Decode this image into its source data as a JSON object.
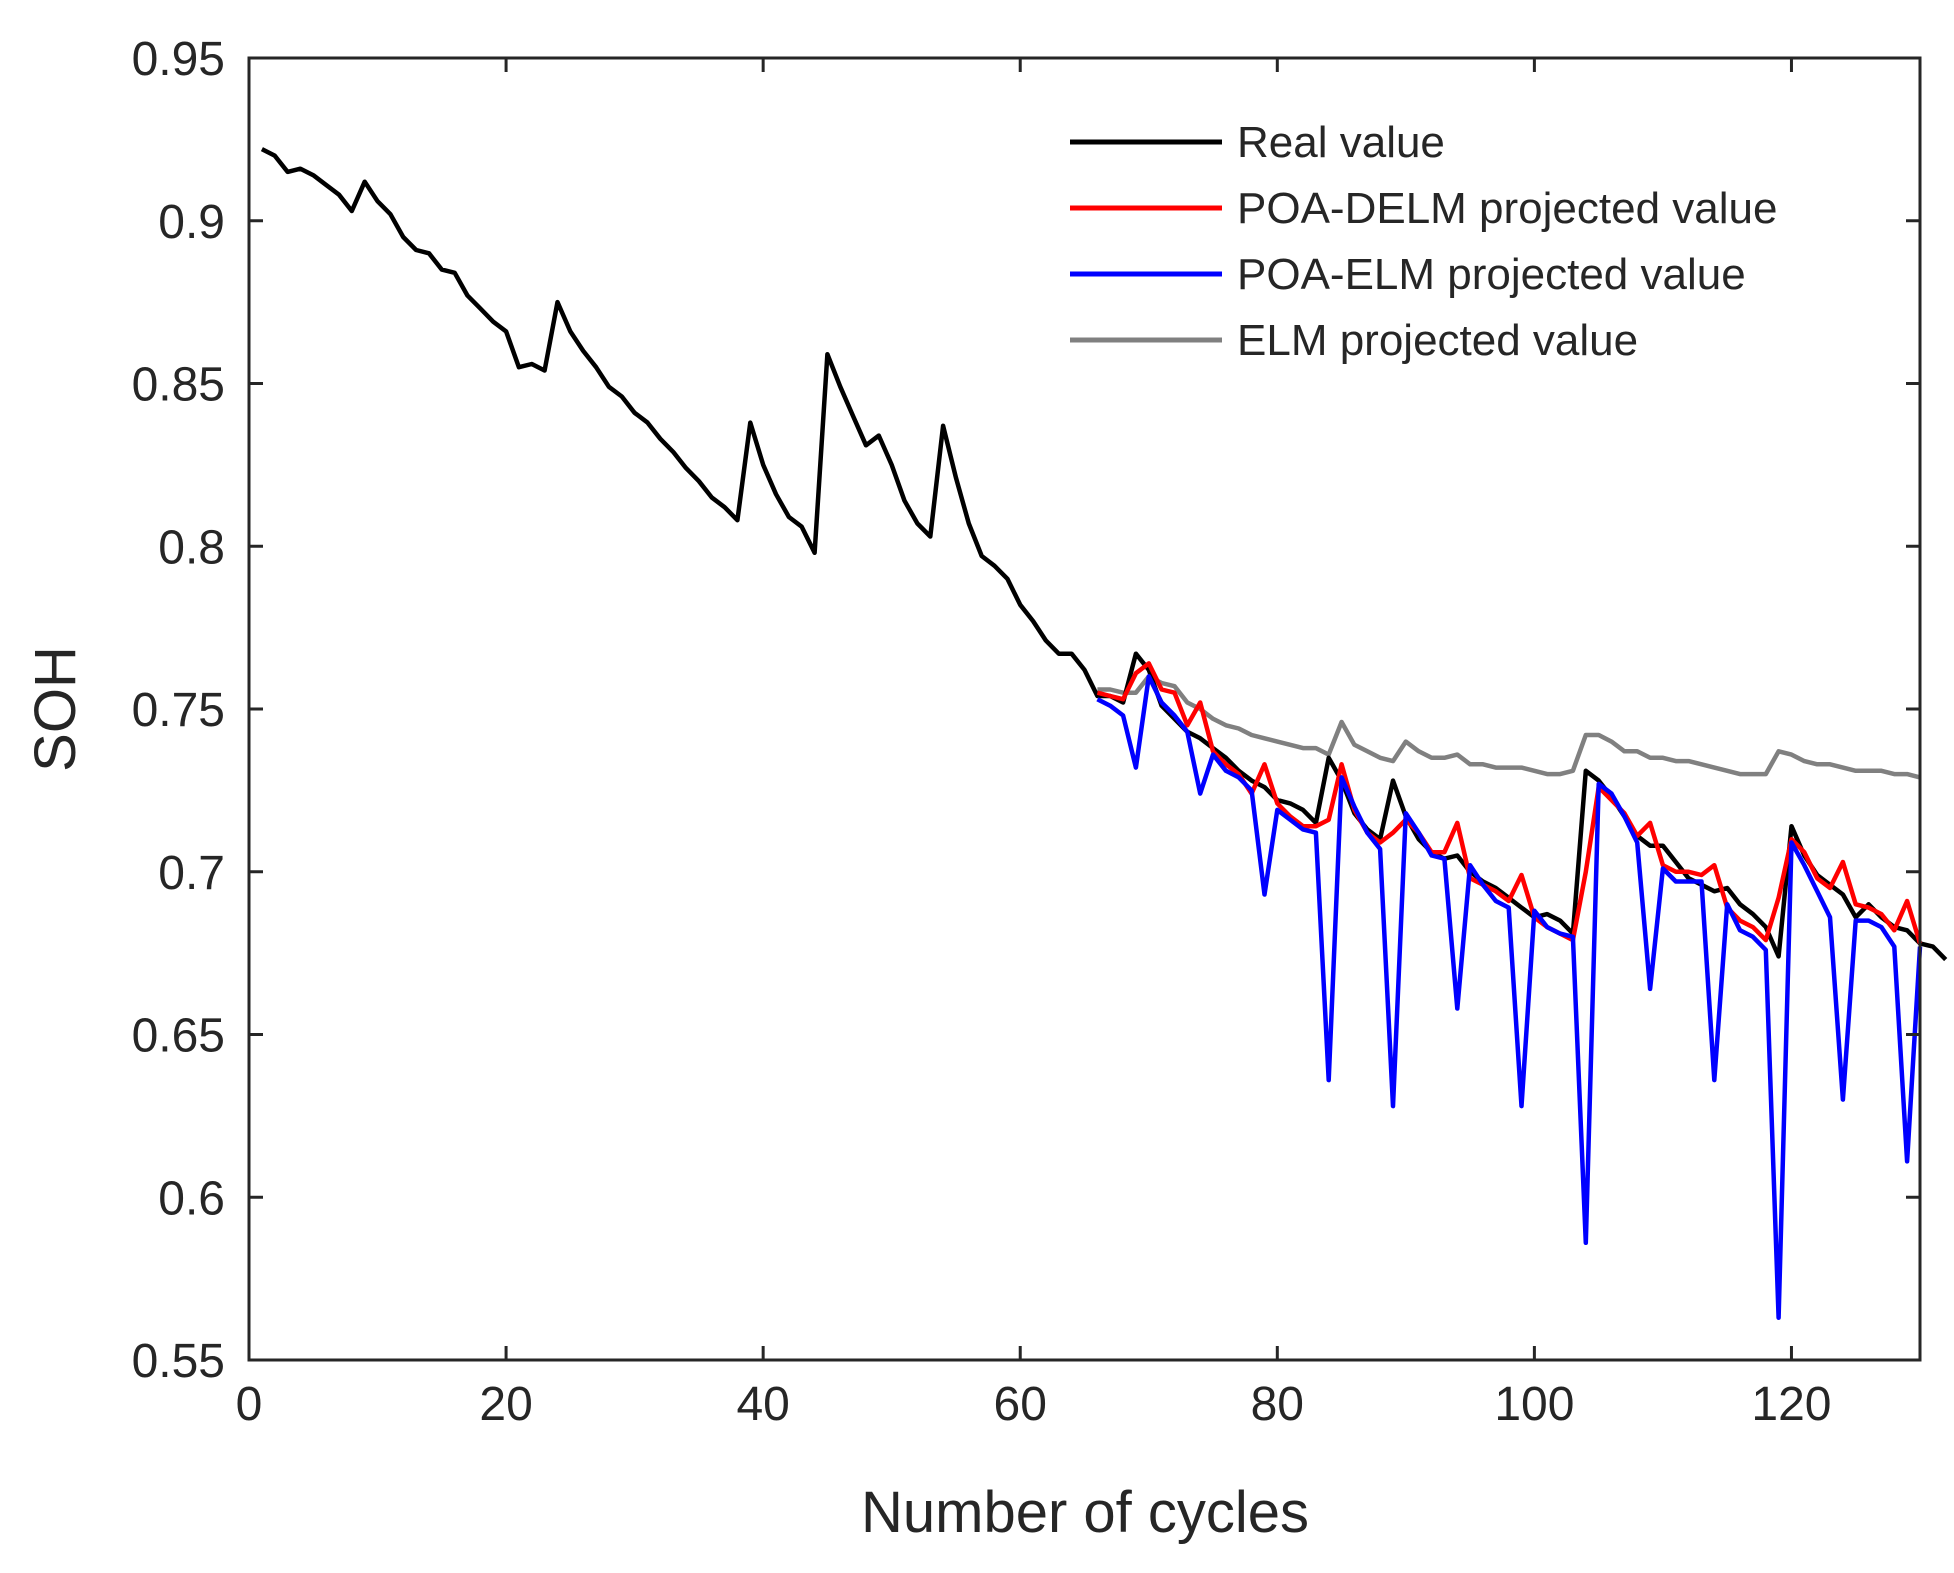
{
  "chart_data": {
    "type": "line",
    "title": "",
    "xlabel": "Number of cycles",
    "ylabel": "SOH",
    "xlim": [
      0,
      130
    ],
    "ylim": [
      0.55,
      0.95
    ],
    "xticks": [
      "0",
      "20",
      "40",
      "60",
      "80",
      "100",
      "120"
    ],
    "xtick_values": [
      0,
      20,
      40,
      60,
      80,
      100,
      120
    ],
    "yticks": [
      "0.55",
      "0.6",
      "0.65",
      "0.7",
      "0.75",
      "0.8",
      "0.85",
      "0.9",
      "0.95"
    ],
    "ytick_values": [
      0.55,
      0.6,
      0.65,
      0.7,
      0.75,
      0.8,
      0.85,
      0.9,
      0.95
    ],
    "legend_position": "top-right",
    "series": [
      {
        "name": "Real value",
        "color": "#000000",
        "x_start": 1,
        "values": [
          0.922,
          0.92,
          0.915,
          0.916,
          0.914,
          0.911,
          0.908,
          0.903,
          0.912,
          0.906,
          0.902,
          0.895,
          0.891,
          0.89,
          0.885,
          0.884,
          0.877,
          0.873,
          0.869,
          0.866,
          0.855,
          0.856,
          0.854,
          0.875,
          0.866,
          0.86,
          0.855,
          0.849,
          0.846,
          0.841,
          0.838,
          0.833,
          0.829,
          0.824,
          0.82,
          0.815,
          0.812,
          0.808,
          0.838,
          0.825,
          0.816,
          0.809,
          0.806,
          0.798,
          0.859,
          0.849,
          0.84,
          0.831,
          0.834,
          0.825,
          0.814,
          0.807,
          0.803,
          0.837,
          0.821,
          0.807,
          0.797,
          0.794,
          0.79,
          0.782,
          0.777,
          0.771,
          0.767,
          0.767,
          0.762,
          0.754,
          0.754,
          0.752,
          0.767,
          0.762,
          0.751,
          0.747,
          0.743,
          0.741,
          0.738,
          0.735,
          0.731,
          0.728,
          0.726,
          0.722,
          0.721,
          0.719,
          0.715,
          0.735,
          0.728,
          0.718,
          0.713,
          0.71,
          0.728,
          0.717,
          0.71,
          0.706,
          0.704,
          0.705,
          0.7,
          0.697,
          0.695,
          0.692,
          0.689,
          0.686,
          0.687,
          0.685,
          0.681,
          0.731,
          0.728,
          0.723,
          0.717,
          0.711,
          0.708,
          0.708,
          0.703,
          0.698,
          0.696,
          0.694,
          0.695,
          0.69,
          0.687,
          0.683,
          0.674,
          0.714,
          0.705,
          0.699,
          0.696,
          0.693,
          0.686,
          0.69,
          0.686,
          0.683,
          0.682,
          0.678,
          0.677,
          0.673
        ]
      },
      {
        "name": "POA-DELM projected value",
        "color": "#ff0000",
        "x_start": 66,
        "values": [
          0.755,
          0.754,
          0.753,
          0.761,
          0.764,
          0.756,
          0.755,
          0.745,
          0.752,
          0.737,
          0.733,
          0.73,
          0.724,
          0.733,
          0.721,
          0.717,
          0.714,
          0.714,
          0.716,
          0.733,
          0.719,
          0.712,
          0.709,
          0.712,
          0.716,
          0.712,
          0.706,
          0.706,
          0.715,
          0.698,
          0.696,
          0.694,
          0.691,
          0.699,
          0.686,
          0.683,
          0.681,
          0.679,
          0.7,
          0.726,
          0.722,
          0.718,
          0.711,
          0.715,
          0.702,
          0.7,
          0.7,
          0.699,
          0.702,
          0.689,
          0.685,
          0.683,
          0.679,
          0.692,
          0.71,
          0.706,
          0.698,
          0.695,
          0.703,
          0.69,
          0.689,
          0.687,
          0.682,
          0.691,
          0.678
        ]
      },
      {
        "name": "POA-ELM projected value",
        "color": "#0000ff",
        "x_start": 66,
        "values": [
          0.753,
          0.751,
          0.748,
          0.732,
          0.76,
          0.752,
          0.748,
          0.743,
          0.724,
          0.736,
          0.731,
          0.729,
          0.725,
          0.693,
          0.719,
          0.716,
          0.713,
          0.712,
          0.636,
          0.729,
          0.72,
          0.712,
          0.707,
          0.628,
          0.718,
          0.712,
          0.705,
          0.704,
          0.658,
          0.702,
          0.696,
          0.691,
          0.689,
          0.628,
          0.688,
          0.683,
          0.681,
          0.68,
          0.586,
          0.727,
          0.724,
          0.717,
          0.709,
          0.664,
          0.701,
          0.697,
          0.697,
          0.697,
          0.636,
          0.69,
          0.682,
          0.68,
          0.676,
          0.563,
          0.709,
          0.702,
          0.694,
          0.686,
          0.63,
          0.685,
          0.685,
          0.683,
          0.677,
          0.611,
          0.677
        ]
      },
      {
        "name": "ELM projected value",
        "color": "#808080",
        "x_start": 66,
        "values": [
          0.756,
          0.756,
          0.755,
          0.755,
          0.76,
          0.758,
          0.757,
          0.752,
          0.75,
          0.747,
          0.745,
          0.744,
          0.742,
          0.741,
          0.74,
          0.739,
          0.738,
          0.738,
          0.736,
          0.746,
          0.739,
          0.737,
          0.735,
          0.734,
          0.74,
          0.737,
          0.735,
          0.735,
          0.736,
          0.733,
          0.733,
          0.732,
          0.732,
          0.732,
          0.731,
          0.73,
          0.73,
          0.731,
          0.742,
          0.742,
          0.74,
          0.737,
          0.737,
          0.735,
          0.735,
          0.734,
          0.734,
          0.733,
          0.732,
          0.731,
          0.73,
          0.73,
          0.73,
          0.737,
          0.736,
          0.734,
          0.733,
          0.733,
          0.732,
          0.731,
          0.731,
          0.731,
          0.73,
          0.73,
          0.729
        ]
      }
    ]
  }
}
